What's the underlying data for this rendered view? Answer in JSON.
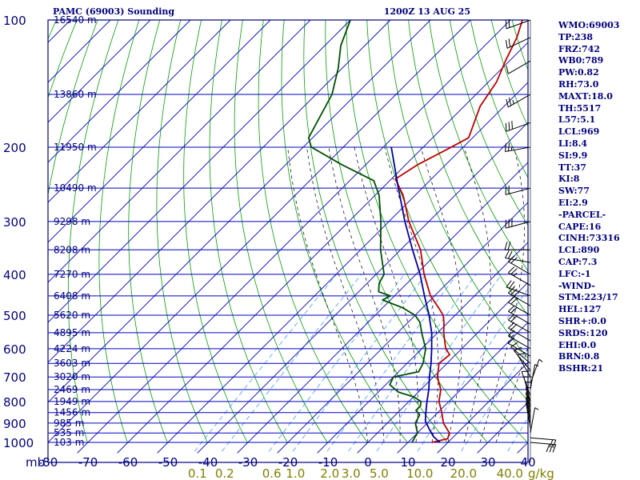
{
  "header": {
    "title": "PAMC (69003) Sounding",
    "timestamp": "1200Z 13 AUG 25"
  },
  "indices": [
    "WMO:69003",
    "TP:238",
    "FRZ:742",
    "WB0:789",
    "PW:0.82",
    "RH:73.0",
    "MAXT:18.0",
    "TH:5517",
    "L57:5.1",
    "LCL:969",
    "LI:8.4",
    "SI:9.9",
    "TT:37",
    "KI:8",
    "SW:77",
    "EI:2.9",
    "-PARCEL-",
    "CAPE:16",
    "CINH:73316",
    "LCL:890",
    "CAP:7.3",
    "LFC:-1",
    "-WIND-",
    "STM:223/17",
    "HEL:127",
    "SHR+:0.0",
    "SRDS:120",
    "EHI:0.0",
    "BRN:0.8",
    "BSHR:21"
  ],
  "colors": {
    "frame": "#000080",
    "isobar": "#0000c0",
    "isotherm": "#0000c0",
    "dry_adiabat": "#00a000",
    "moist_adiabat": "#000000",
    "mixing_ratio": "#4499ff",
    "temperature": "#c00000",
    "dewpoint": "#005000",
    "parcel": "#0000a0",
    "mixing_label": "#808000"
  },
  "chart_data": {
    "type": "line",
    "diagram": "skew-T log-p",
    "pressure_labels": [
      "100",
      "200",
      "300",
      "400",
      "500",
      "600",
      "700",
      "800",
      "900",
      "1000"
    ],
    "pressure_levels": [
      100,
      200,
      300,
      400,
      500,
      600,
      700,
      800,
      900,
      1000
    ],
    "pressure_unit": "mb",
    "temperature_labels": [
      "-80",
      "-70",
      "-60",
      "-50",
      "-40",
      "-30",
      "-20",
      "-10",
      "0",
      "10",
      "20",
      "30",
      "40"
    ],
    "temperature_ticks": [
      -80,
      -70,
      -60,
      -50,
      -40,
      -30,
      -20,
      -10,
      0,
      10,
      20,
      30,
      40
    ],
    "mixing_ratio_labels": [
      "0.1",
      "0.2",
      "0.6",
      "1.0",
      "2.0",
      "3.0",
      "5.0",
      "10.0",
      "20.0",
      "40.0"
    ],
    "mixing_ratio_unit": "g/kg",
    "height_labels": [
      {
        "p": 100,
        "label": "16540 m"
      },
      {
        "p": 150,
        "label": "13860 m"
      },
      {
        "p": 200,
        "label": "11950 m"
      },
      {
        "p": 250,
        "label": "10490 m"
      },
      {
        "p": 300,
        "label": "9298 m"
      },
      {
        "p": 350,
        "label": "8208 m"
      },
      {
        "p": 400,
        "label": "7270 m"
      },
      {
        "p": 450,
        "label": "6408 m"
      },
      {
        "p": 500,
        "label": "5620 m"
      },
      {
        "p": 550,
        "label": "4895 m"
      },
      {
        "p": 600,
        "label": "4224 m"
      },
      {
        "p": 650,
        "label": "3603 m"
      },
      {
        "p": 700,
        "label": "3020 m"
      },
      {
        "p": 750,
        "label": "2469 m"
      },
      {
        "p": 800,
        "label": "1949 m"
      },
      {
        "p": 850,
        "label": "1456 m"
      },
      {
        "p": 900,
        "label": "985 m"
      },
      {
        "p": 950,
        "label": "535 m"
      },
      {
        "p": 1000,
        "label": "103 m"
      }
    ],
    "series": [
      {
        "id": "temperature",
        "points": [
          {
            "p": 100,
            "t": -67
          },
          {
            "p": 110,
            "t": -64
          },
          {
            "p": 125,
            "t": -61
          },
          {
            "p": 140,
            "t": -58
          },
          {
            "p": 160,
            "t": -56
          },
          {
            "p": 190,
            "t": -51
          },
          {
            "p": 200,
            "t": -53
          },
          {
            "p": 220,
            "t": -57
          },
          {
            "p": 238,
            "t": -59
          },
          {
            "p": 260,
            "t": -53
          },
          {
            "p": 300,
            "t": -45
          },
          {
            "p": 350,
            "t": -35
          },
          {
            "p": 400,
            "t": -28
          },
          {
            "p": 450,
            "t": -21
          },
          {
            "p": 480,
            "t": -16
          },
          {
            "p": 500,
            "t": -13
          },
          {
            "p": 520,
            "t": -11
          },
          {
            "p": 550,
            "t": -8.5
          },
          {
            "p": 600,
            "t": -4
          },
          {
            "p": 620,
            "t": -1.5
          },
          {
            "p": 650,
            "t": -2
          },
          {
            "p": 700,
            "t": 1
          },
          {
            "p": 750,
            "t": 5
          },
          {
            "p": 800,
            "t": 7.5
          },
          {
            "p": 850,
            "t": 11
          },
          {
            "p": 900,
            "t": 14
          },
          {
            "p": 950,
            "t": 18
          },
          {
            "p": 980,
            "t": 19
          },
          {
            "p": 1000,
            "t": 16
          }
        ]
      },
      {
        "id": "dewpoint",
        "points": [
          {
            "p": 100,
            "t": -110
          },
          {
            "p": 115,
            "t": -106
          },
          {
            "p": 130,
            "t": -101
          },
          {
            "p": 150,
            "t": -96
          },
          {
            "p": 190,
            "t": -91
          },
          {
            "p": 200,
            "t": -88
          },
          {
            "p": 220,
            "t": -76
          },
          {
            "p": 240,
            "t": -64
          },
          {
            "p": 260,
            "t": -59
          },
          {
            "p": 300,
            "t": -52
          },
          {
            "p": 350,
            "t": -45
          },
          {
            "p": 400,
            "t": -38
          },
          {
            "p": 420,
            "t": -37
          },
          {
            "p": 440,
            "t": -35
          },
          {
            "p": 450,
            "t": -31
          },
          {
            "p": 460,
            "t": -32
          },
          {
            "p": 480,
            "t": -25
          },
          {
            "p": 500,
            "t": -20
          },
          {
            "p": 520,
            "t": -17
          },
          {
            "p": 550,
            "t": -14
          },
          {
            "p": 600,
            "t": -9
          },
          {
            "p": 650,
            "t": -6
          },
          {
            "p": 680,
            "t": -5
          },
          {
            "p": 700,
            "t": -10
          },
          {
            "p": 730,
            "t": -9
          },
          {
            "p": 760,
            "t": -5
          },
          {
            "p": 780,
            "t": 0
          },
          {
            "p": 800,
            "t": 3
          },
          {
            "p": 820,
            "t": 4
          },
          {
            "p": 840,
            "t": 4
          },
          {
            "p": 860,
            "t": 6
          },
          {
            "p": 900,
            "t": 7
          },
          {
            "p": 950,
            "t": 10
          },
          {
            "p": 1000,
            "t": 11
          }
        ]
      },
      {
        "id": "parcel",
        "points": [
          {
            "p": 1000,
            "t": 18
          },
          {
            "p": 970,
            "t": 15
          },
          {
            "p": 930,
            "t": 12
          },
          {
            "p": 890,
            "t": 9
          },
          {
            "p": 850,
            "t": 7
          },
          {
            "p": 800,
            "t": 4.5
          },
          {
            "p": 750,
            "t": 2
          },
          {
            "p": 700,
            "t": -1
          },
          {
            "p": 650,
            "t": -4
          },
          {
            "p": 600,
            "t": -7.5
          },
          {
            "p": 550,
            "t": -11.5
          },
          {
            "p": 500,
            "t": -16.5
          },
          {
            "p": 450,
            "t": -22.5
          },
          {
            "p": 400,
            "t": -29
          },
          {
            "p": 350,
            "t": -37
          },
          {
            "p": 300,
            "t": -46
          },
          {
            "p": 250,
            "t": -56
          },
          {
            "p": 200,
            "t": -68
          }
        ]
      }
    ],
    "wind_barbs": [
      {
        "p": 1000,
        "dir": 95,
        "spd": 30
      },
      {
        "p": 975,
        "dir": 95,
        "spd": 20
      },
      {
        "p": 950,
        "dir": 10,
        "spd": 5
      },
      {
        "p": 925,
        "dir": 350,
        "spd": 5
      },
      {
        "p": 900,
        "dir": 350,
        "spd": 5
      },
      {
        "p": 875,
        "dir": 350,
        "spd": 5
      },
      {
        "p": 850,
        "dir": 350,
        "spd": 5
      },
      {
        "p": 825,
        "dir": 350,
        "spd": 5
      },
      {
        "p": 800,
        "dir": 345,
        "spd": 10
      },
      {
        "p": 775,
        "dir": 340,
        "spd": 10
      },
      {
        "p": 750,
        "dir": 10,
        "spd": 5
      },
      {
        "p": 725,
        "dir": 20,
        "spd": 5
      },
      {
        "p": 700,
        "dir": 330,
        "spd": 10
      },
      {
        "p": 675,
        "dir": 320,
        "spd": 10
      },
      {
        "p": 650,
        "dir": 310,
        "spd": 10
      },
      {
        "p": 625,
        "dir": 300,
        "spd": 10
      },
      {
        "p": 600,
        "dir": 300,
        "spd": 15
      },
      {
        "p": 575,
        "dir": 300,
        "spd": 20
      },
      {
        "p": 550,
        "dir": 300,
        "spd": 20
      },
      {
        "p": 525,
        "dir": 300,
        "spd": 20
      },
      {
        "p": 500,
        "dir": 300,
        "spd": 20
      },
      {
        "p": 475,
        "dir": 300,
        "spd": 25
      },
      {
        "p": 450,
        "dir": 290,
        "spd": 25
      },
      {
        "p": 425,
        "dir": 300,
        "spd": 25
      },
      {
        "p": 400,
        "dir": 300,
        "spd": 20
      },
      {
        "p": 375,
        "dir": 280,
        "spd": 20
      },
      {
        "p": 350,
        "dir": 270,
        "spd": 20
      },
      {
        "p": 300,
        "dir": 255,
        "spd": 30
      },
      {
        "p": 250,
        "dir": 255,
        "spd": 20
      },
      {
        "p": 200,
        "dir": 260,
        "spd": 25
      },
      {
        "p": 175,
        "dir": 250,
        "spd": 30
      },
      {
        "p": 150,
        "dir": 240,
        "spd": 25
      },
      {
        "p": 125,
        "dir": 240,
        "spd": 10
      },
      {
        "p": 110,
        "dir": 245,
        "spd": 20
      },
      {
        "p": 100,
        "dir": 250,
        "spd": 20
      }
    ],
    "grid": true
  }
}
